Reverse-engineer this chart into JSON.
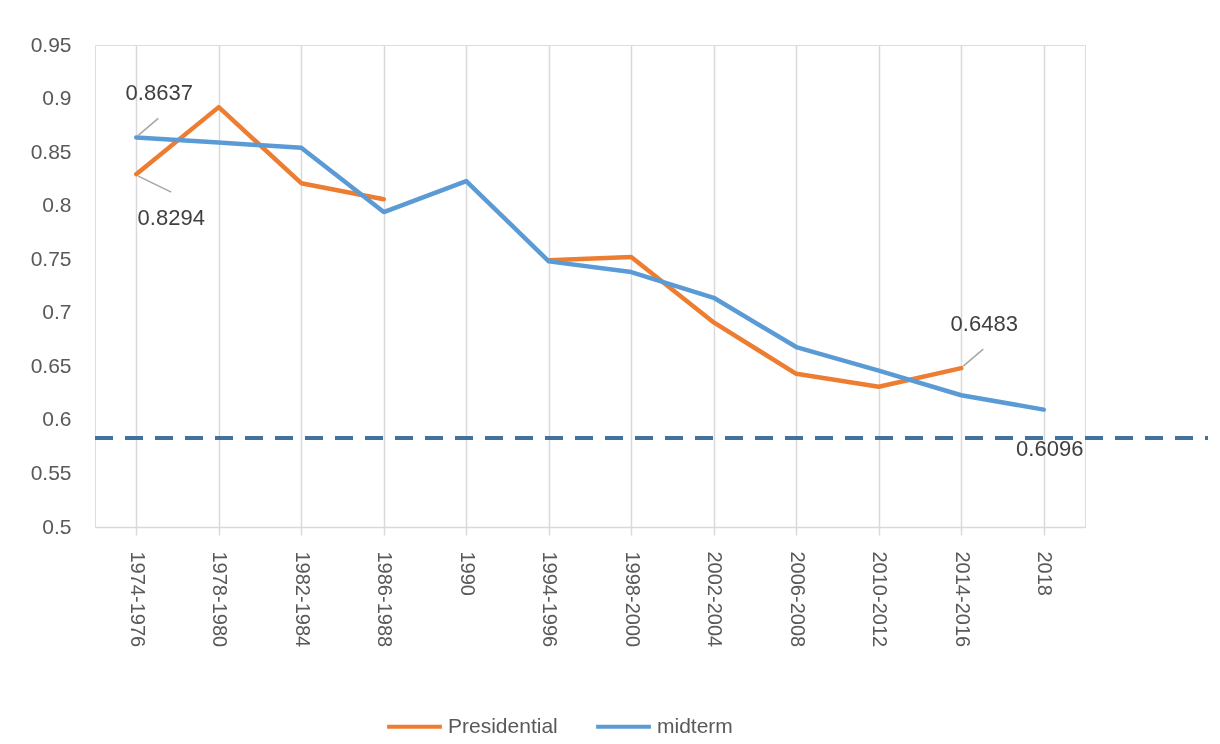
{
  "chart_data": {
    "type": "line",
    "categories": [
      "1974-1976",
      "1978-1980",
      "1982-1984",
      "1986-1988",
      "1990",
      "1994-1996",
      "1998-2000",
      "2002-2004",
      "2006-2008",
      "2010-2012",
      "2014-2016",
      "2018"
    ],
    "series": [
      {
        "name": "Presidential",
        "color": "#ed7d31",
        "values": [
          0.8294,
          0.892,
          0.821,
          0.806,
          null,
          0.749,
          0.752,
          0.691,
          0.643,
          0.631,
          0.6483,
          null
        ],
        "value_labels": [
          "0.8294",
          null,
          null,
          null,
          null,
          null,
          null,
          null,
          null,
          null,
          "0.6483",
          null
        ]
      },
      {
        "name": "midterm",
        "color": "#5b9bd5",
        "values": [
          0.8637,
          0.859,
          0.854,
          0.794,
          0.823,
          0.748,
          0.738,
          0.714,
          0.668,
          0.646,
          0.623,
          0.6096
        ],
        "value_labels": [
          "0.8637",
          null,
          null,
          null,
          null,
          null,
          null,
          null,
          null,
          null,
          null,
          "0.6096"
        ]
      }
    ],
    "ylim": [
      0.5,
      0.95
    ],
    "yticks": [
      0.5,
      0.55,
      0.6,
      0.65,
      0.7,
      0.75,
      0.8,
      0.85,
      0.9,
      0.95
    ],
    "grid": "x",
    "legend": "bottom",
    "marker": "none",
    "line_style": "solid",
    "ref_lines": [
      {
        "axis": "y",
        "value": 0.583,
        "color": "#41719c",
        "line_style": "dashed"
      }
    ]
  }
}
